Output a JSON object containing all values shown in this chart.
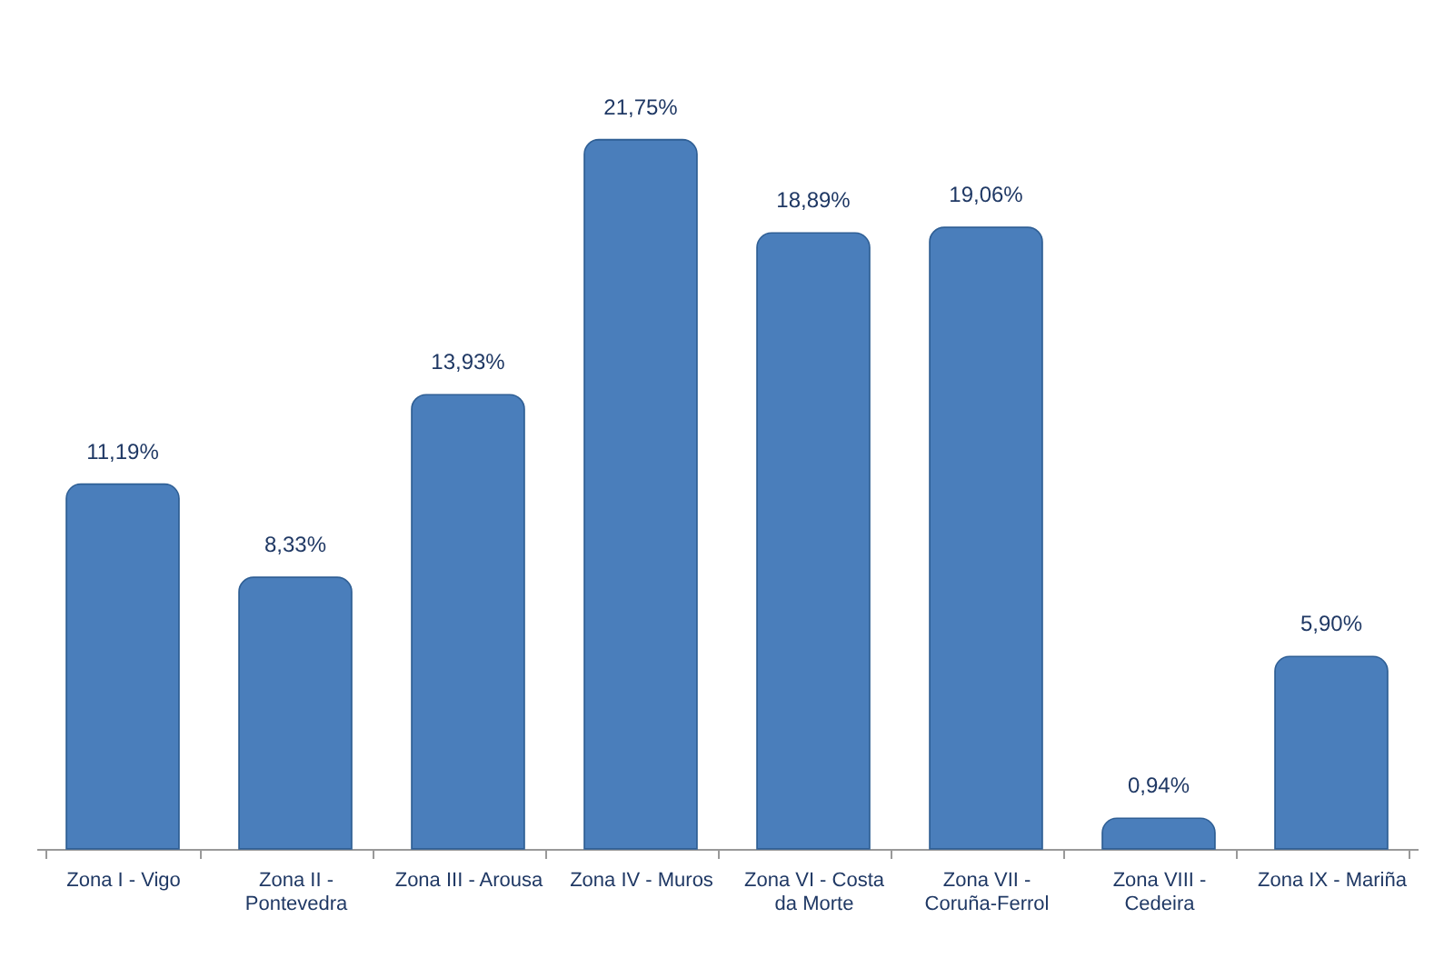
{
  "chart_data": {
    "type": "bar",
    "categories": [
      "Zona I - Vigo",
      "Zona II - Pontevedra",
      "Zona III - Arousa",
      "Zona IV - Muros",
      "Zona VI - Costa da Morte",
      "Zona VII - Coruña-Ferrol",
      "Zona VIII - Cedeira",
      "Zona IX - Mariña"
    ],
    "values": [
      11.19,
      8.33,
      13.93,
      21.75,
      18.89,
      19.06,
      0.94,
      5.9
    ],
    "value_labels": [
      "11,19%",
      "8,33%",
      "13,93%",
      "21,75%",
      "18,89%",
      "19,06%",
      "0,94%",
      "5,90%"
    ],
    "color": "#4a7ebb"
  }
}
